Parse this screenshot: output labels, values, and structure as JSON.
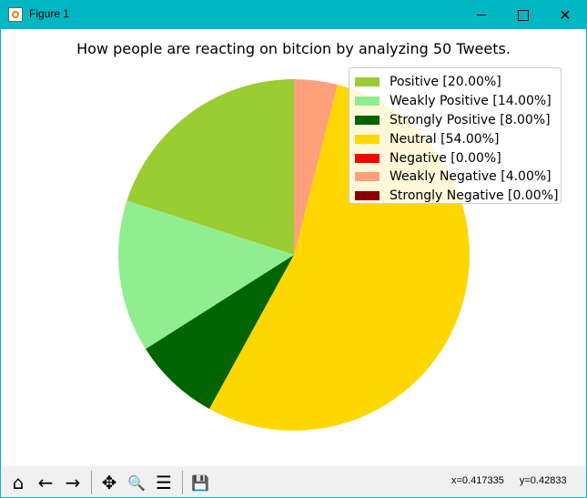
{
  "window": {
    "title": "Figure 1",
    "minimize_glyph": "",
    "maximize_glyph": "",
    "close_glyph": "✕"
  },
  "toolbar": {
    "home_glyph": "⌂",
    "back_glyph": "←",
    "forward_glyph": "→",
    "pan_glyph": "✥",
    "zoom_glyph": "🔍",
    "configure_glyph": "☰",
    "save_glyph": "💾",
    "coord_x": "x=0.417335",
    "coord_y": "y=0.42833"
  },
  "chart_data": {
    "type": "pie",
    "title": "How people are reacting on bitcion by analyzing 50 Tweets.",
    "start_angle_deg": 90,
    "direction": "counterclockwise",
    "legend_position": "top-right",
    "slices": [
      {
        "label": "Positive [20.00%]",
        "value": 20,
        "color": "#9acd32"
      },
      {
        "label": "Weakly Positive [14.00%]",
        "value": 14,
        "color": "#90ee90"
      },
      {
        "label": "Strongly Positive [8.00%]",
        "value": 8,
        "color": "#006400"
      },
      {
        "label": "Neutral [54.00%]",
        "value": 54,
        "color": "#ffd700"
      },
      {
        "label": "Negative [0.00%]",
        "value": 0,
        "color": "#ff0000"
      },
      {
        "label": "Weakly Negative [4.00%]",
        "value": 4,
        "color": "#ffa07a"
      },
      {
        "label": "Strongly Negative [0.00%]",
        "value": 0,
        "color": "#8b0000"
      }
    ]
  }
}
